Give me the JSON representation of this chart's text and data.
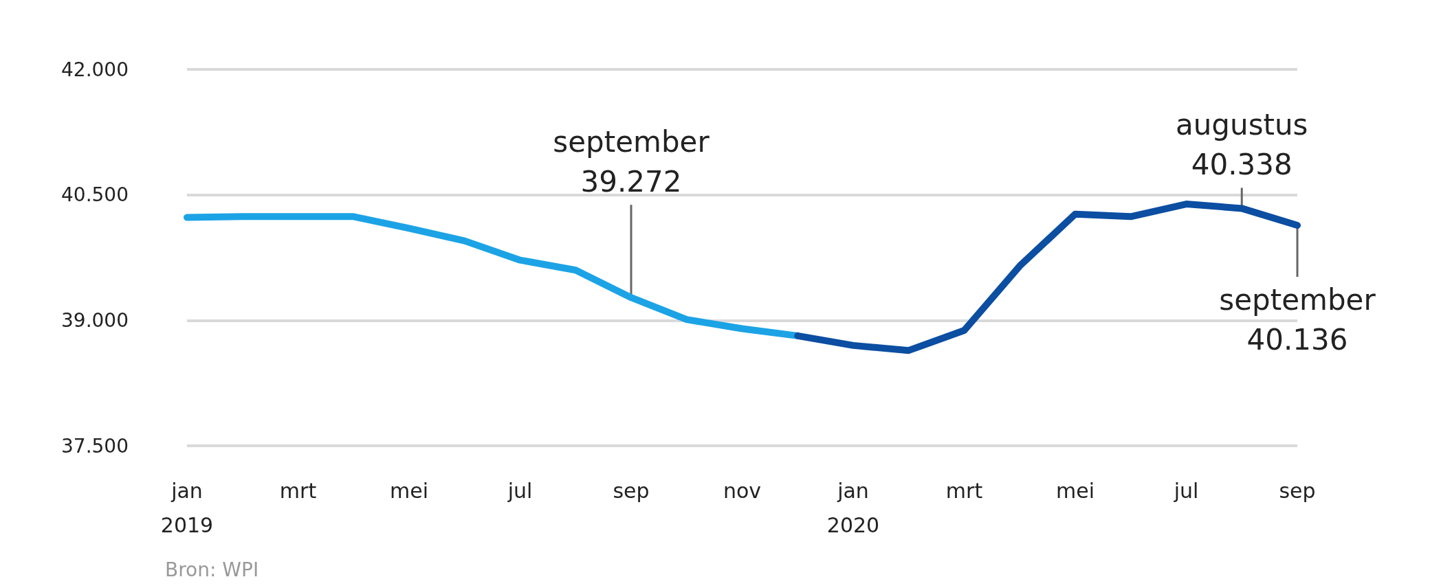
{
  "chart_data": {
    "type": "line",
    "categories": [
      "jan\n2019",
      null,
      "mrt",
      null,
      "mei",
      null,
      "jul",
      null,
      "sep",
      null,
      "nov",
      null,
      "jan\n2020",
      null,
      "mrt",
      null,
      "mei",
      null,
      "jul",
      null,
      "sep"
    ],
    "series": [
      {
        "color": "#1ca3e6",
        "values": [
          40230,
          40240,
          40240,
          40240,
          40100,
          39950,
          39720,
          39600,
          39272,
          39010,
          38900,
          38815,
          null,
          null,
          null,
          null,
          null,
          null,
          null,
          null,
          null
        ]
      },
      {
        "color": "#0b4ea2",
        "values": [
          null,
          null,
          null,
          null,
          null,
          null,
          null,
          null,
          null,
          null,
          null,
          38815,
          38700,
          38640,
          38880,
          39650,
          40270,
          40240,
          40390,
          40338,
          40136
        ]
      }
    ],
    "ylim": [
      37500,
      42000
    ],
    "yticks": [
      {
        "value": 37500,
        "label": "37.500"
      },
      {
        "value": 39000,
        "label": "39.000"
      },
      {
        "value": 40500,
        "label": "40.500"
      },
      {
        "value": 42000,
        "label": "42.000"
      }
    ],
    "grid": "y",
    "marker": "none",
    "line_style": "solid",
    "annotations": [
      {
        "text": "september\n39.272",
        "y": 39272
      },
      {
        "text": "augustus\n40.338",
        "y": 40338
      },
      {
        "text": "september\n40.136",
        "y": 40136
      },
      "Bron: WPI"
    ]
  }
}
